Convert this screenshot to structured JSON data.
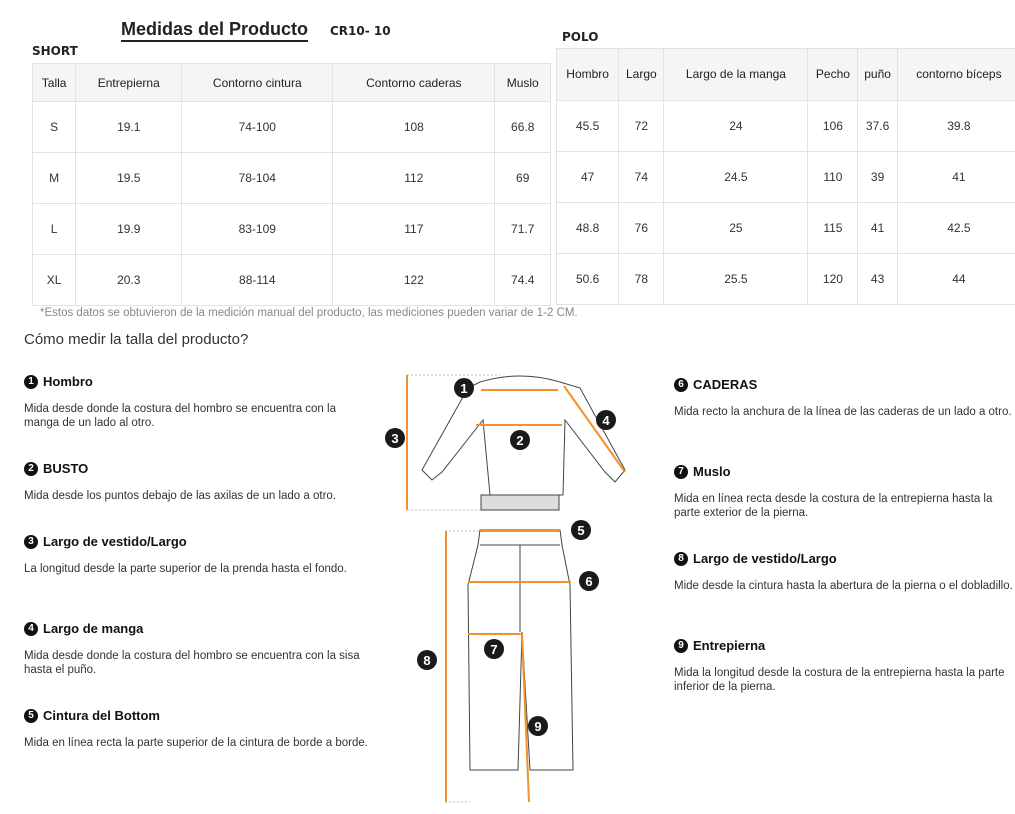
{
  "header": {
    "title": "Medidas del Producto",
    "code": "CR10- 10"
  },
  "short": {
    "label": "SHORT",
    "columns": [
      "Talla",
      "Entrepierna",
      "Contorno cintura",
      "Contorno caderas",
      "Muslo"
    ],
    "rows": [
      [
        "S",
        "19.1",
        "74-100",
        "108",
        "66.8"
      ],
      [
        "M",
        "19.5",
        "78-104",
        "112",
        "69"
      ],
      [
        "L",
        "19.9",
        "83-109",
        "117",
        "71.7"
      ],
      [
        "XL",
        "20.3",
        "88-114",
        "122",
        "74.4"
      ]
    ]
  },
  "polo": {
    "label": "POLO",
    "columns": [
      "Hombro",
      "Largo",
      "Largo de la manga",
      "Pecho",
      "puño",
      "contorno bíceps"
    ],
    "rows": [
      [
        "45.5",
        "72",
        "24",
        "106",
        "37.6",
        "39.8"
      ],
      [
        "47",
        "74",
        "24.5",
        "110",
        "39",
        "41"
      ],
      [
        "48.8",
        "76",
        "25",
        "115",
        "41",
        "42.5"
      ],
      [
        "50.6",
        "78",
        "25.5",
        "120",
        "43",
        "44"
      ]
    ]
  },
  "note": "*Estos datos se obtuvieron de la medición manual del producto, las mediciones pueden variar de 1-2 CM.",
  "how_title": "Cómo medir la talla del producto?",
  "accent": "#f0922e",
  "steps": [
    {
      "n": "1",
      "title": "Hombro",
      "desc": "Mida desde donde la costura del hombro se encuentra con la manga de un lado al otro."
    },
    {
      "n": "2",
      "title": "BUSTO",
      "desc": "Mida desde los puntos debajo de las axilas de un lado a otro."
    },
    {
      "n": "3",
      "title": "Largo de vestido/Largo",
      "desc": "La longitud desde la parte superior de la prenda hasta el fondo."
    },
    {
      "n": "4",
      "title": "Largo de manga",
      "desc": "Mida desde donde la costura del hombro se encuentra con la sisa hasta el puño."
    },
    {
      "n": "5",
      "title": "Cintura del Bottom",
      "desc": "Mida en línea recta la parte superior de la cintura de borde a borde."
    },
    {
      "n": "6",
      "title": "CADERAS",
      "desc": "Mida recto la anchura de la línea de las caderas de un lado a otro."
    },
    {
      "n": "7",
      "title": "Muslo",
      "desc": "Mida en línea recta desde la costura de la entrepierna hasta la parte exterior de la pierna."
    },
    {
      "n": "8",
      "title": "Largo de vestido/Largo",
      "desc": "Mide desde la cintura hasta la abertura de la pierna o el dobladillo."
    },
    {
      "n": "9",
      "title": "Entrepierna",
      "desc": "Mida la longitud desde la costura de la entrepierna hasta la parte inferior de la pierna."
    }
  ]
}
